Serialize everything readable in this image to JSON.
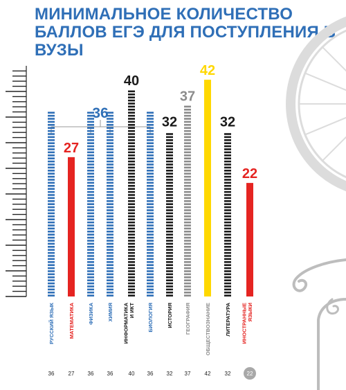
{
  "title": "МИНИМАЛЬНОЕ КОЛИЧЕСТВО БАЛЛОВ ЕГЭ ДЛЯ ПОСТУПЛЕНИЯ В ВУЗЫ",
  "colors": {
    "title": "#2f6fb7",
    "blue": "#2f6fb7",
    "red": "#e52421",
    "black": "#1a1a1a",
    "gray": "#8c8c8c",
    "yellow": "#ffd800",
    "decor": "#dcdcdc"
  },
  "chart_data": {
    "type": "bar",
    "title": "МИНИМАЛЬНОЕ КОЛИЧЕСТВО БАЛЛОВ ЕГЭ ДЛЯ ПОСТУПЛЕНИЯ В ВУЗЫ",
    "categories": [
      "РУССКИЙ ЯЗЫК",
      "МАТЕМАТИКА",
      "ФИЗИКА",
      "ХИМИЯ",
      "ИНФОРМАТИКА И ИКТ",
      "БИОЛОГИЯ",
      "ИСТОРИЯ",
      "ГЕОГРАФИЯ",
      "ОБЩЕСТВОЗНАНИЕ",
      "ЛИТЕРАТУРА",
      "ИНОСТРАННЫЕ ЯЗЫКИ"
    ],
    "category_lines": [
      [
        "РУССКИЙ ЯЗЫК"
      ],
      [
        "МАТЕМАТИКА"
      ],
      [
        "ФИЗИКА"
      ],
      [
        "ХИМИЯ"
      ],
      [
        "ИНФОРМАТИКА",
        "И ИКТ"
      ],
      [
        "БИОЛОГИЯ"
      ],
      [
        "ИСТОРИЯ"
      ],
      [
        "ГЕОГРАФИЯ"
      ],
      [
        "ОБЩЕСТВОЗНАНИЕ"
      ],
      [
        "ЛИТЕРАТУРА"
      ],
      [
        "ИНОСТРАННЫЕ",
        "ЯЗЫКИ"
      ]
    ],
    "values": [
      36,
      27,
      36,
      36,
      40,
      36,
      32,
      37,
      42,
      32,
      22
    ],
    "bar_styles": [
      "blue",
      "red",
      "blue",
      "blue",
      "black",
      "blue",
      "black",
      "gray",
      "yellow",
      "black",
      "red"
    ],
    "fill_styles": [
      "segmented",
      "solid",
      "segmented",
      "segmented",
      "segmented",
      "segmented",
      "segmented",
      "segmented",
      "solid",
      "segmented",
      "solid"
    ],
    "label_styles": [
      "blue",
      "red",
      "blue",
      "blue",
      "black",
      "blue",
      "black",
      "gray",
      "gray",
      "black",
      "red"
    ],
    "value_labels": [
      null,
      "27",
      null,
      null,
      "40",
      null,
      "32",
      "37",
      "42",
      "32",
      "22"
    ],
    "group_label": "36",
    "group_indices": [
      0,
      2,
      3,
      5
    ],
    "footer_values": [
      "36",
      "27",
      "36",
      "36",
      "40",
      "36",
      "32",
      "37",
      "42",
      "32",
      "22"
    ],
    "footer_highlight_index": 10,
    "ylim": [
      0,
      44
    ],
    "xlabel": "",
    "ylabel": "",
    "grid": false
  }
}
